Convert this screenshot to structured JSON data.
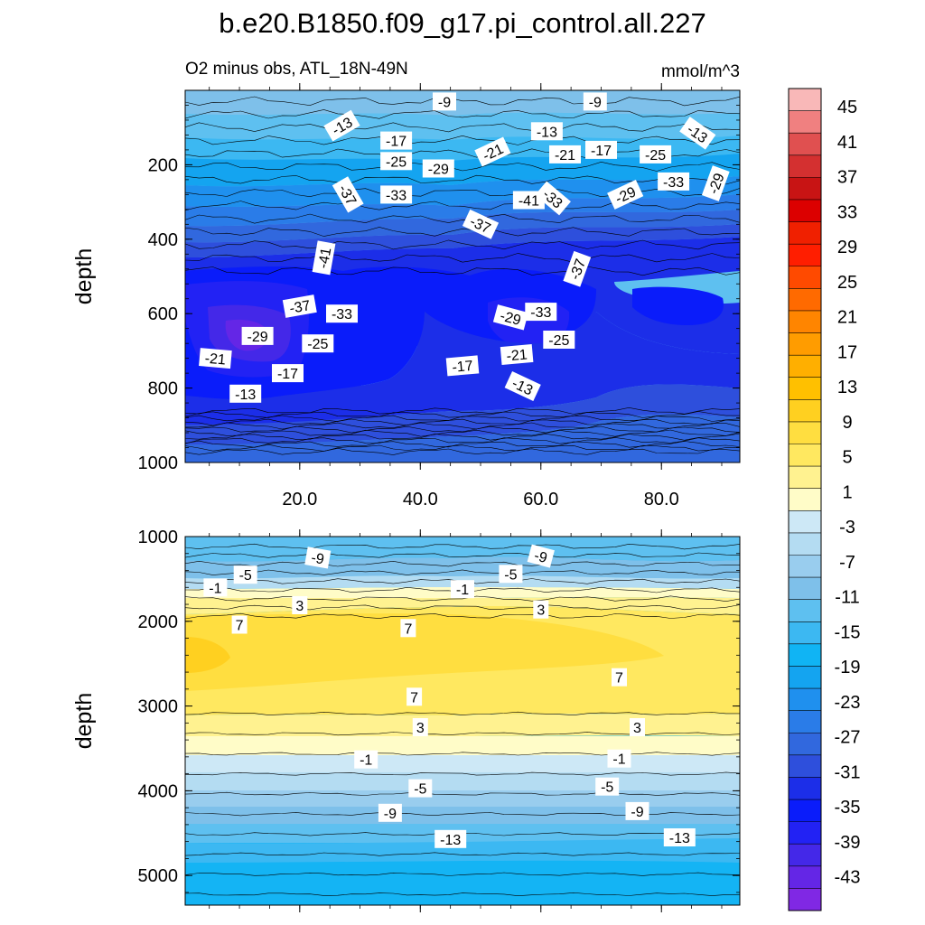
{
  "chart_data": {
    "type": "contour",
    "title": "b.e20.B1850.f09_g17.pi_control.all.227",
    "subtitle": "O2 minus obs, ATL_18N-49N",
    "units": "mmol/m^3",
    "panels": [
      {
        "name": "upper",
        "ylabel": "depth",
        "xlim": [
          1,
          93
        ],
        "ylim": [
          1000,
          0
        ],
        "xticks": [
          "20.0",
          "40.0",
          "60.0",
          "80.0"
        ],
        "xtick_values": [
          20,
          40,
          60,
          80
        ],
        "yticks": [
          "200",
          "400",
          "600",
          "800",
          "1000"
        ],
        "ytick_values": [
          200,
          400,
          600,
          800,
          1000
        ],
        "contour_labels": [
          {
            "text": "-9",
            "x": 44,
            "y": 30,
            "rot": 0
          },
          {
            "text": "-9",
            "x": 69,
            "y": 30,
            "rot": 0
          },
          {
            "text": "-13",
            "x": 27,
            "y": 95,
            "rot": -30
          },
          {
            "text": "-13",
            "x": 61,
            "y": 110,
            "rot": 0
          },
          {
            "text": "-13",
            "x": 86,
            "y": 115,
            "rot": 35
          },
          {
            "text": "-17",
            "x": 36,
            "y": 135,
            "rot": 0
          },
          {
            "text": "-17",
            "x": 70,
            "y": 160,
            "rot": 0
          },
          {
            "text": "-21",
            "x": 52,
            "y": 165,
            "rot": -25
          },
          {
            "text": "-21",
            "x": 64,
            "y": 172,
            "rot": 0
          },
          {
            "text": "-25",
            "x": 36,
            "y": 190,
            "rot": 0
          },
          {
            "text": "-25",
            "x": 79,
            "y": 172,
            "rot": 0
          },
          {
            "text": "-29",
            "x": 43,
            "y": 210,
            "rot": 0
          },
          {
            "text": "-29",
            "x": 74,
            "y": 280,
            "rot": -25
          },
          {
            "text": "-29",
            "x": 89,
            "y": 250,
            "rot": -70
          },
          {
            "text": "-33",
            "x": 36,
            "y": 280,
            "rot": 0
          },
          {
            "text": "-33",
            "x": 82,
            "y": 245,
            "rot": 0
          },
          {
            "text": "-33",
            "x": 62,
            "y": 290,
            "rot": 40
          },
          {
            "text": "-37",
            "x": 28,
            "y": 280,
            "rot": 60
          },
          {
            "text": "-37",
            "x": 50,
            "y": 360,
            "rot": 25
          },
          {
            "text": "-37",
            "x": 66,
            "y": 480,
            "rot": -70
          },
          {
            "text": "-41",
            "x": 58,
            "y": 295,
            "rot": 0
          },
          {
            "text": "-41",
            "x": 24,
            "y": 450,
            "rot": -80
          },
          {
            "text": "-37",
            "x": 20,
            "y": 580,
            "rot": -10
          },
          {
            "text": "-33",
            "x": 27,
            "y": 600,
            "rot": 0
          },
          {
            "text": "-33",
            "x": 60,
            "y": 595,
            "rot": 0
          },
          {
            "text": "-29",
            "x": 13,
            "y": 660,
            "rot": 0
          },
          {
            "text": "-29",
            "x": 55,
            "y": 610,
            "rot": 15
          },
          {
            "text": "-25",
            "x": 23,
            "y": 680,
            "rot": 0
          },
          {
            "text": "-25",
            "x": 63,
            "y": 670,
            "rot": 0
          },
          {
            "text": "-21",
            "x": 6,
            "y": 720,
            "rot": 5
          },
          {
            "text": "-21",
            "x": 56,
            "y": 710,
            "rot": -5
          },
          {
            "text": "-17",
            "x": 18,
            "y": 760,
            "rot": 0
          },
          {
            "text": "-17",
            "x": 47,
            "y": 740,
            "rot": -5
          },
          {
            "text": "-13",
            "x": 11,
            "y": 815,
            "rot": 0
          },
          {
            "text": "-13",
            "x": 57,
            "y": 795,
            "rot": 25
          }
        ]
      },
      {
        "name": "lower",
        "ylabel": "depth",
        "xlim": [
          1,
          93
        ],
        "ylim": [
          5350,
          1000
        ],
        "yticks": [
          "1000",
          "2000",
          "3000",
          "4000",
          "5000"
        ],
        "ytick_values": [
          1000,
          2000,
          3000,
          4000,
          5000
        ],
        "contour_labels": [
          {
            "text": "-9",
            "x": 23,
            "y": 1250,
            "rot": 10
          },
          {
            "text": "-9",
            "x": 60,
            "y": 1230,
            "rot": 15
          },
          {
            "text": "-5",
            "x": 11,
            "y": 1450,
            "rot": 0
          },
          {
            "text": "-5",
            "x": 55,
            "y": 1440,
            "rot": 0
          },
          {
            "text": "-1",
            "x": 6,
            "y": 1600,
            "rot": 0
          },
          {
            "text": "-1",
            "x": 47,
            "y": 1620,
            "rot": 0
          },
          {
            "text": "3",
            "x": 20,
            "y": 1810,
            "rot": 0
          },
          {
            "text": "3",
            "x": 60,
            "y": 1860,
            "rot": 0
          },
          {
            "text": "7",
            "x": 10,
            "y": 2040,
            "rot": 0
          },
          {
            "text": "7",
            "x": 38,
            "y": 2080,
            "rot": 0
          },
          {
            "text": "7",
            "x": 73,
            "y": 2660,
            "rot": 0
          },
          {
            "text": "7",
            "x": 39,
            "y": 2890,
            "rot": 0
          },
          {
            "text": "3",
            "x": 40,
            "y": 3250,
            "rot": 0
          },
          {
            "text": "3",
            "x": 76,
            "y": 3250,
            "rot": 0
          },
          {
            "text": "-1",
            "x": 31,
            "y": 3630,
            "rot": 0
          },
          {
            "text": "-1",
            "x": 73,
            "y": 3620,
            "rot": 0
          },
          {
            "text": "-5",
            "x": 40,
            "y": 3970,
            "rot": 0
          },
          {
            "text": "-5",
            "x": 71,
            "y": 3950,
            "rot": 0
          },
          {
            "text": "-9",
            "x": 35,
            "y": 4260,
            "rot": 0
          },
          {
            "text": "-9",
            "x": 76,
            "y": 4240,
            "rot": 0
          },
          {
            "text": "-13",
            "x": 45,
            "y": 4570,
            "rot": 0
          },
          {
            "text": "-13",
            "x": 83,
            "y": 4550,
            "rot": 0
          }
        ]
      }
    ],
    "colorbar": {
      "labels": [
        "45",
        "41",
        "37",
        "33",
        "29",
        "25",
        "21",
        "17",
        "13",
        "9",
        "5",
        "1",
        "-3",
        "-7",
        "-11",
        "-15",
        "-19",
        "-23",
        "-27",
        "-31",
        "-35",
        "-39",
        "-43"
      ],
      "colors": [
        "#f9b8b8",
        "#f08080",
        "#e05050",
        "#d43030",
        "#c81414",
        "#dc0000",
        "#f02000",
        "#ff1e00",
        "#ff4a00",
        "#ff6a00",
        "#ff8500",
        "#ff9c00",
        "#ffaf00",
        "#ffc000",
        "#ffd020",
        "#ffde40",
        "#ffe860",
        "#fff290",
        "#fffcc8",
        "#cde8f6",
        "#b4dcf2",
        "#99cdee",
        "#7ec0ea",
        "#5ec0f0",
        "#3cb8f2",
        "#10b4f4",
        "#14a4f0",
        "#1f90ee",
        "#2a7ce8",
        "#3168de",
        "#2e4fdc",
        "#1c2ee8",
        "#0a1cfa",
        "#2222f4",
        "#4428e8",
        "#6426e6",
        "#8028e4"
      ]
    }
  }
}
